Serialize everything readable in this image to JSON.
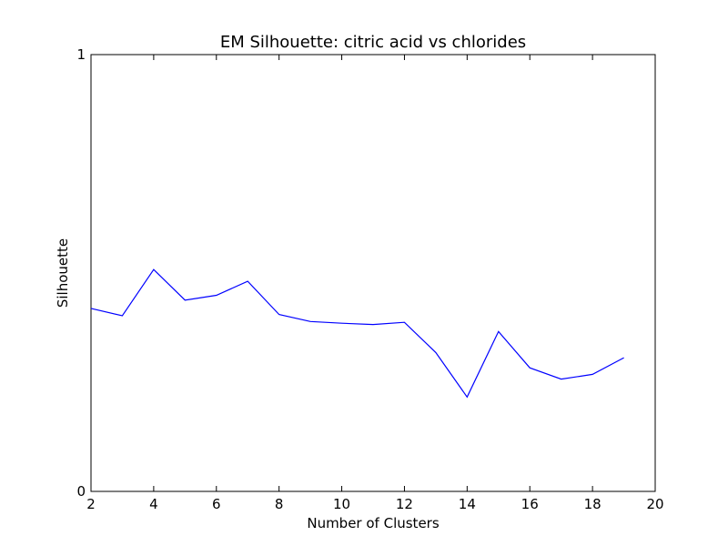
{
  "chart_data": {
    "type": "line",
    "title": "EM Silhouette: citric acid vs chlorides",
    "xlabel": "Number of Clusters",
    "ylabel": "Silhouette",
    "xlim": [
      2,
      20
    ],
    "ylim": [
      0,
      1
    ],
    "x_ticks": [
      2,
      4,
      6,
      8,
      10,
      12,
      14,
      16,
      18,
      20
    ],
    "y_ticks": [
      0,
      1
    ],
    "grid": false,
    "legend": "none",
    "series": [
      {
        "color": "#0000ff",
        "x": [
          2,
          3,
          4,
          5,
          6,
          7,
          8,
          9,
          10,
          11,
          12,
          13,
          14,
          15,
          16,
          17,
          18,
          19
        ],
        "y": [
          0.419,
          0.402,
          0.508,
          0.438,
          0.449,
          0.481,
          0.405,
          0.389,
          0.385,
          0.382,
          0.387,
          0.318,
          0.216,
          0.366,
          0.283,
          0.257,
          0.268,
          0.306
        ]
      }
    ]
  }
}
